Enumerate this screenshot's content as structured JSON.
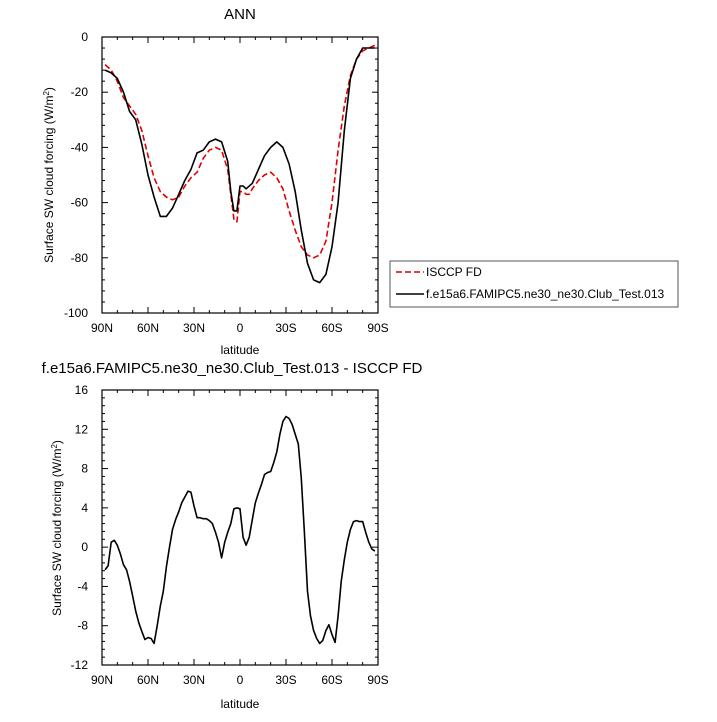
{
  "chart_data": [
    {
      "type": "line",
      "title": "ANN",
      "xlabel": "latitude",
      "ylabel": "Surface SW cloud forcing (W/m",
      "ylabel_superscript": "2",
      "ylabel_suffix": ")",
      "xlim": [
        90,
        -90
      ],
      "ylim": [
        -100,
        0
      ],
      "yticks": [
        "0",
        "-20",
        "-40",
        "-60",
        "-80",
        "-100"
      ],
      "ytick_values": [
        0,
        -20,
        -40,
        -60,
        -80,
        -100
      ],
      "xticks": [
        "90N",
        "60N",
        "30N",
        "0",
        "30S",
        "60S",
        "90S"
      ],
      "xtick_values": [
        90,
        60,
        30,
        0,
        -30,
        -60,
        -90
      ],
      "legend": "right",
      "series": [
        {
          "name": "ISCCP FD",
          "color": "#e00000",
          "dash": true,
          "x": [
            88,
            84,
            80,
            76,
            72,
            68,
            64,
            60,
            56,
            52,
            48,
            44,
            40,
            36,
            32,
            28,
            24,
            20,
            16,
            12,
            8,
            6,
            4,
            2,
            0,
            -2,
            -4,
            -6,
            -8,
            -12,
            -16,
            -20,
            -24,
            -28,
            -32,
            -36,
            -40,
            -44,
            -48,
            -52,
            -56,
            -60,
            -64,
            -68,
            -72,
            -76,
            -80,
            -84,
            -88
          ],
          "y": [
            -10,
            -12,
            -16,
            -22,
            -25,
            -28,
            -34,
            -43,
            -51,
            -56,
            -58,
            -59,
            -58,
            -54,
            -51,
            -49,
            -44,
            -41,
            -40,
            -41,
            -48,
            -57,
            -66,
            -67,
            -56,
            -56,
            -57,
            -57,
            -55,
            -52,
            -50,
            -49,
            -51,
            -55,
            -63,
            -70,
            -76,
            -79,
            -80,
            -79,
            -74,
            -60,
            -41,
            -25,
            -14,
            -8,
            -5,
            -4,
            -3
          ]
        },
        {
          "name": "f.e15a6.FAMIPC5.ne30_ne30.Club_Test.013",
          "color": "#000000",
          "dash": false,
          "x": [
            88,
            84,
            80,
            76,
            72,
            68,
            64,
            60,
            56,
            52,
            48,
            44,
            40,
            36,
            32,
            28,
            24,
            20,
            16,
            12,
            8,
            6,
            4,
            2,
            0,
            -2,
            -4,
            -8,
            -12,
            -16,
            -20,
            -24,
            -28,
            -32,
            -36,
            -40,
            -44,
            -48,
            -52,
            -56,
            -60,
            -64,
            -68,
            -72,
            -76,
            -80,
            -84,
            -88
          ],
          "y": [
            -12,
            -13,
            -15,
            -20,
            -27,
            -30,
            -39,
            -50,
            -58,
            -65,
            -65,
            -62,
            -57,
            -52,
            -48,
            -42,
            -41,
            -38,
            -37,
            -38,
            -45,
            -56,
            -63,
            -63,
            -54,
            -54,
            -55,
            -53,
            -48,
            -43,
            -40,
            -38,
            -40,
            -46,
            -56,
            -70,
            -82,
            -88,
            -89,
            -86,
            -76,
            -60,
            -34,
            -15,
            -8,
            -4,
            -4,
            -4
          ]
        }
      ]
    },
    {
      "type": "line",
      "title": "f.e15a6.FAMIPC5.ne30_ne30.Club_Test.013 - ISCCP FD",
      "xlabel": "latitude",
      "ylabel": "Surface SW cloud forcing (W/m",
      "ylabel_superscript": "2",
      "ylabel_suffix": ")",
      "xlim": [
        90,
        -90
      ],
      "ylim": [
        -12,
        16
      ],
      "yticks": [
        "16",
        "12",
        "8",
        "4",
        "0",
        "-4",
        "-8",
        "-12"
      ],
      "ytick_values": [
        16,
        12,
        8,
        4,
        0,
        -4,
        -8,
        -12
      ],
      "xticks": [
        "90N",
        "60N",
        "30N",
        "0",
        "30S",
        "60S",
        "90S"
      ],
      "xtick_values": [
        90,
        60,
        30,
        0,
        -30,
        -60,
        -90
      ],
      "series": [
        {
          "color": "#000000",
          "dash": false,
          "x": [
            88,
            86,
            84,
            82,
            80,
            78,
            76,
            74,
            72,
            70,
            68,
            66,
            64,
            62,
            60,
            58,
            56,
            54,
            52,
            50,
            48,
            46,
            44,
            42,
            40,
            38,
            36,
            34,
            32,
            30,
            28,
            26,
            24,
            22,
            20,
            18,
            16,
            14,
            12,
            10,
            8,
            6,
            4,
            2,
            0,
            -2,
            -4,
            -6,
            -8,
            -10,
            -12,
            -14,
            -16,
            -18,
            -20,
            -22,
            -24,
            -26,
            -28,
            -30,
            -32,
            -34,
            -36,
            -38,
            -40,
            -42,
            -44,
            -46,
            -48,
            -50,
            -52,
            -54,
            -56,
            -58,
            -60,
            -62,
            -64,
            -66,
            -68,
            -70,
            -72,
            -74,
            -76,
            -78,
            -80,
            -82,
            -84,
            -86,
            -88
          ],
          "y": [
            -2.3,
            -1.9,
            0.5,
            0.7,
            0.2,
            -0.7,
            -1.8,
            -2.3,
            -3.5,
            -5.0,
            -6.5,
            -7.7,
            -8.6,
            -9.4,
            -9.2,
            -9.3,
            -9.8,
            -8.0,
            -6.0,
            -4.5,
            -2.0,
            0.0,
            1.8,
            2.8,
            3.6,
            4.5,
            5.1,
            5.7,
            5.6,
            4.2,
            3.0,
            3.0,
            2.9,
            2.9,
            2.7,
            2.4,
            1.5,
            0.5,
            -1.1,
            0.5,
            1.5,
            2.4,
            3.9,
            4.0,
            3.9,
            1.0,
            0.2,
            1.0,
            2.8,
            4.5,
            5.5,
            6.4,
            7.4,
            7.6,
            7.7,
            8.6,
            9.7,
            11.5,
            12.8,
            13.3,
            13.1,
            12.5,
            11.5,
            10.5,
            7.0,
            1.5,
            -4.5,
            -7.0,
            -8.5,
            -9.3,
            -9.8,
            -9.5,
            -8.5,
            -7.9,
            -8.9,
            -9.7,
            -7.0,
            -3.5,
            -1.3,
            0.5,
            1.8,
            2.6,
            2.7,
            2.6,
            2.6,
            1.5,
            0.5,
            -0.2,
            -0.4
          ]
        }
      ]
    }
  ]
}
